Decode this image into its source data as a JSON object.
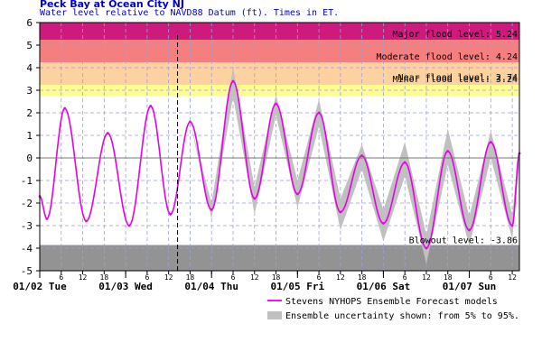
{
  "chart_data": {
    "type": "line",
    "title": "Peck Bay at Ocean City NJ",
    "subtitle": "Water level relative to NAVD88 Datum (ft). Times in ET.",
    "ylim": [
      -5,
      6
    ],
    "y_ticks": [
      "-5",
      "-4",
      "-3",
      "-2",
      "-1",
      "0",
      "1",
      "2",
      "3",
      "4",
      "5",
      "6"
    ],
    "hour_ticks": [
      "6",
      "12",
      "18"
    ],
    "day_labels": [
      "01/02 Tue",
      "01/03 Wed",
      "01/04 Thu",
      "01/05 Fri",
      "01/06 Sat",
      "01/07 Sun"
    ],
    "x_range_hours": [
      0,
      134
    ],
    "now_hour": 38.5,
    "bands": [
      {
        "name": "Major",
        "label": "Major flood level: 5.24",
        "from": 5.24,
        "to": 6,
        "color": "#cc1b7d"
      },
      {
        "name": "Moderate",
        "label": "Moderate flood level: 4.24",
        "from": 4.24,
        "to": 5.24,
        "color": "#f57f7f"
      },
      {
        "name": "Minor",
        "label": "Minor flood level: 3.24",
        "from": 3.24,
        "to": 4.24,
        "color": "#fdd2a0"
      },
      {
        "name": "Near",
        "label": "Near flood level: 2.74",
        "from": 2.74,
        "to": 3.24,
        "color": "#fcfc93"
      },
      {
        "name": "Blowout",
        "label": "Blowout level: -3.86",
        "from": -5,
        "to": -3.86,
        "color": "#939393"
      }
    ],
    "series": [
      {
        "name": "Stevens NYHOPS Ensemble Forecast models",
        "color": "#e600e6",
        "x": [
          0,
          2,
          7,
          13,
          19,
          25,
          31,
          36.5,
          42,
          48,
          54,
          60,
          66,
          72,
          78,
          84,
          90,
          96,
          102,
          108,
          114,
          120,
          126,
          132,
          134
        ],
        "y": [
          -1.7,
          -2.7,
          2.2,
          -2.8,
          1.1,
          -3.0,
          2.3,
          -2.5,
          1.6,
          -2.3,
          3.4,
          -1.8,
          2.4,
          -1.6,
          2.0,
          -2.4,
          0.1,
          -2.9,
          -0.2,
          -4.0,
          0.3,
          -3.2,
          0.7,
          -3.0,
          0.2
        ]
      }
    ],
    "uncertainty": {
      "label": "Ensemble uncertainty shown: from 5% to 95%.",
      "color": "#c0c0c0",
      "x": [
        0,
        2,
        7,
        13,
        19,
        25,
        31,
        36.5,
        42,
        48,
        54,
        60,
        66,
        72,
        78,
        84,
        90,
        96,
        102,
        108,
        114,
        120,
        126,
        132,
        134
      ],
      "low": [
        -1.7,
        -2.7,
        2.2,
        -2.8,
        1.1,
        -3.0,
        2.3,
        -2.5,
        1.6,
        -2.7,
        2.7,
        -2.5,
        1.9,
        -2.2,
        1.4,
        -3.2,
        -0.5,
        -3.7,
        -0.8,
        -4.7,
        -0.3,
        -3.9,
        0.0,
        -3.6,
        -0.2
      ],
      "high": [
        -1.7,
        -2.7,
        2.2,
        -2.8,
        1.1,
        -3.0,
        2.3,
        -2.5,
        1.6,
        -2.0,
        4.0,
        -1.3,
        2.8,
        -1.0,
        2.6,
        -1.8,
        0.6,
        -2.3,
        0.7,
        -3.4,
        1.3,
        -2.6,
        1.2,
        -2.5,
        0.6
      ]
    },
    "grid": true
  }
}
